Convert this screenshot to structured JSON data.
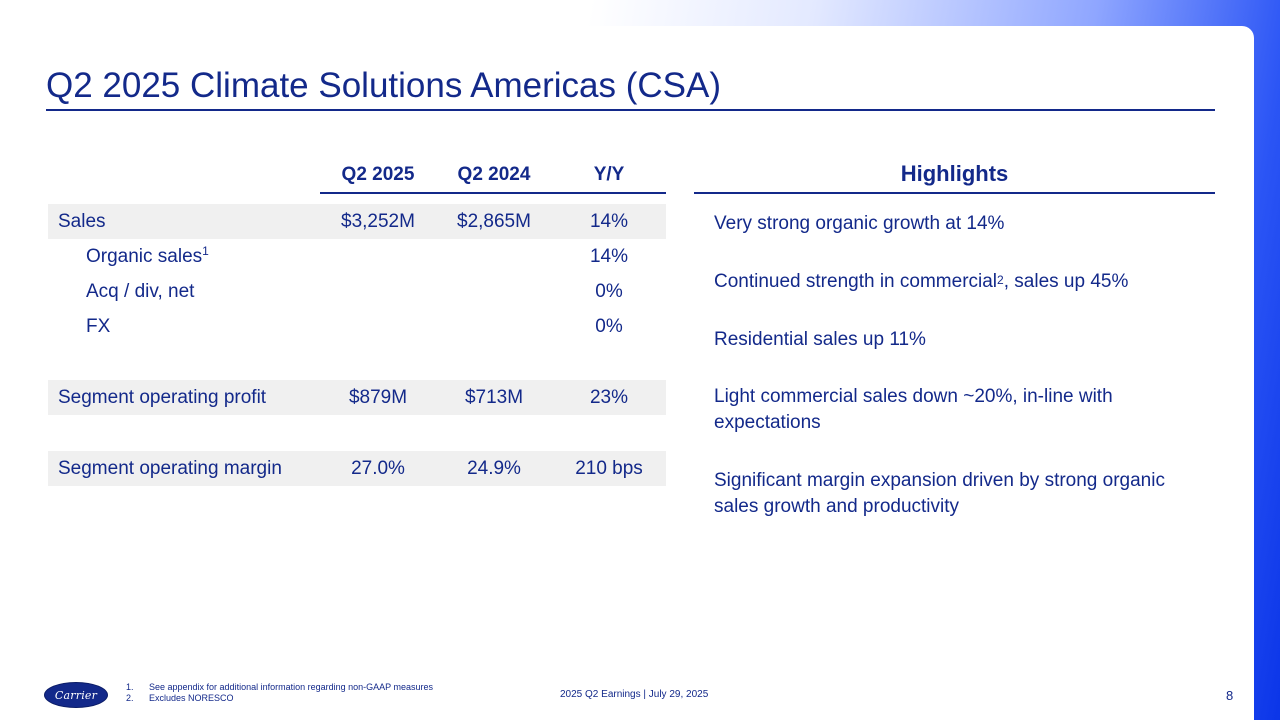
{
  "slide": {
    "title": "Q2 2025 Climate Solutions Americas (CSA)",
    "page_number": "8",
    "footer_text": "2025 Q2 Earnings | July 29, 2025"
  },
  "table": {
    "columns": [
      "Q2 2025",
      "Q2 2024",
      "Y/Y"
    ],
    "rows": {
      "sales": {
        "label": "Sales",
        "q2_2025": "$3,252M",
        "q2_2024": "$2,865M",
        "yy": "14%"
      },
      "organic": {
        "label": "Organic sales",
        "sup": "1",
        "yy": "14%"
      },
      "acq": {
        "label": "Acq / div, net",
        "yy": "0%"
      },
      "fx": {
        "label": "FX",
        "yy": "0%"
      },
      "sop": {
        "label": "Segment operating profit",
        "q2_2025": "$879M",
        "q2_2024": "$713M",
        "yy": "23%"
      },
      "som": {
        "label": "Segment operating margin",
        "q2_2025": "27.0%",
        "q2_2024": "24.9%",
        "yy": "210 bps"
      }
    }
  },
  "highlights": {
    "heading": "Highlights",
    "item1": "Very strong organic growth at 14%",
    "item2_pre": "Continued strength in commercial",
    "item2_sup": "2",
    "item2_post": ", sales up 45%",
    "item3": "Residential sales up 11%",
    "item4": "Light commercial sales down ~20%, in-line with expectations",
    "item5": "Significant margin expansion driven by strong organic sales growth and productivity"
  },
  "footnotes": [
    {
      "num": "1.",
      "text": "See appendix for additional information regarding non-GAAP measures"
    },
    {
      "num": "2.",
      "text": "Excludes NORESCO"
    }
  ],
  "logo": {
    "text": "Carrier"
  },
  "colors": {
    "brand_navy": "#13298a",
    "accent_blue": "#0b35e8",
    "row_shade": "#f0f0f0"
  }
}
